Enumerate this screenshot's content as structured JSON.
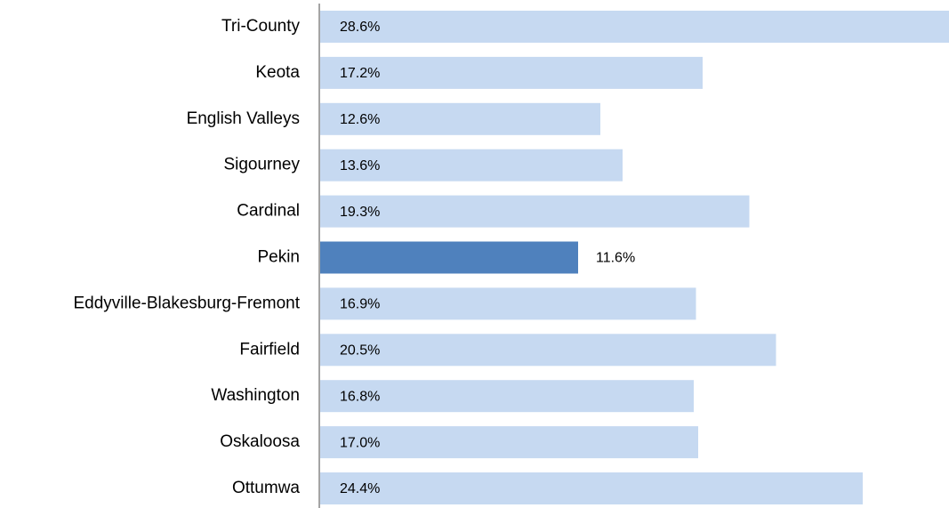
{
  "chart_data": {
    "type": "bar",
    "orientation": "horizontal",
    "categories": [
      "Tri-County",
      "Keota",
      "English Valleys",
      "Sigourney",
      "Cardinal",
      "Pekin",
      "Eddyville-Blakesburg-Fremont",
      "Fairfield",
      "Washington",
      "Oskaloosa",
      "Ottumwa"
    ],
    "values": [
      28.6,
      17.2,
      12.6,
      13.6,
      19.3,
      11.6,
      16.9,
      20.5,
      16.8,
      17.0,
      24.4
    ],
    "value_labels": [
      "28.6%",
      "17.2%",
      "12.6%",
      "13.6%",
      "19.3%",
      "11.6%",
      "16.9%",
      "20.5%",
      "16.8%",
      "17.0%",
      "24.4%"
    ],
    "colors": [
      "#c6d9f1",
      "#c6d9f1",
      "#c6d9f1",
      "#c6d9f1",
      "#c6d9f1",
      "#4f81bd",
      "#c6d9f1",
      "#c6d9f1",
      "#c6d9f1",
      "#c6d9f1",
      "#c6d9f1"
    ]
  }
}
